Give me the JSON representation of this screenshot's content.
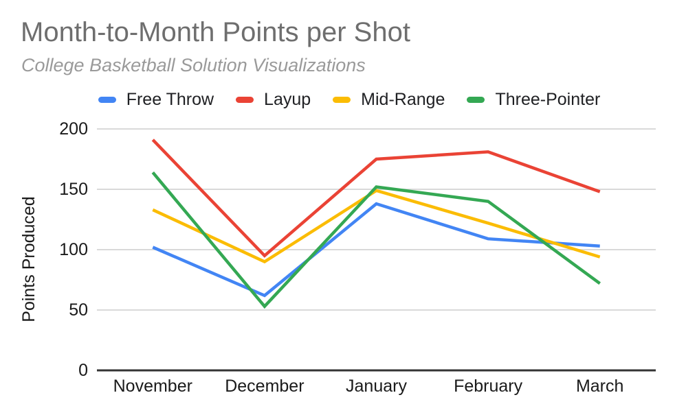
{
  "header": {
    "title": "Month-to-Month Points per Shot",
    "subtitle": "College Basketball Solution Visualizations"
  },
  "colors": {
    "background": "#ffffff",
    "title_text": "#6e6e6e",
    "subtitle_text": "#9a9a9a",
    "axis_text": "#1a1a1a",
    "legend_text": "#202124",
    "gridline": "#d9d9d9",
    "axis_line": "#333333"
  },
  "chart_data": {
    "type": "line",
    "title": "Month-to-Month Points per Shot",
    "subtitle": "College Basketball Solution Visualizations",
    "xlabel": "",
    "ylabel": "Points Produced",
    "categories": [
      "November",
      "December",
      "January",
      "February",
      "March"
    ],
    "series": [
      {
        "name": "Free Throw",
        "color": "#4285F4",
        "values": [
          102,
          62,
          138,
          109,
          103
        ]
      },
      {
        "name": "Layup",
        "color": "#EA4335",
        "values": [
          191,
          95,
          175,
          181,
          148
        ]
      },
      {
        "name": "Mid-Range",
        "color": "#FBBC04",
        "values": [
          133,
          90,
          149,
          122,
          94
        ]
      },
      {
        "name": "Three-Pointer",
        "color": "#34A853",
        "values": [
          164,
          53,
          152,
          140,
          72
        ]
      }
    ],
    "ylim": [
      0,
      200
    ],
    "yticks": [
      0,
      50,
      100,
      150,
      200
    ],
    "grid": true,
    "legend_position": "top",
    "markers": false
  }
}
